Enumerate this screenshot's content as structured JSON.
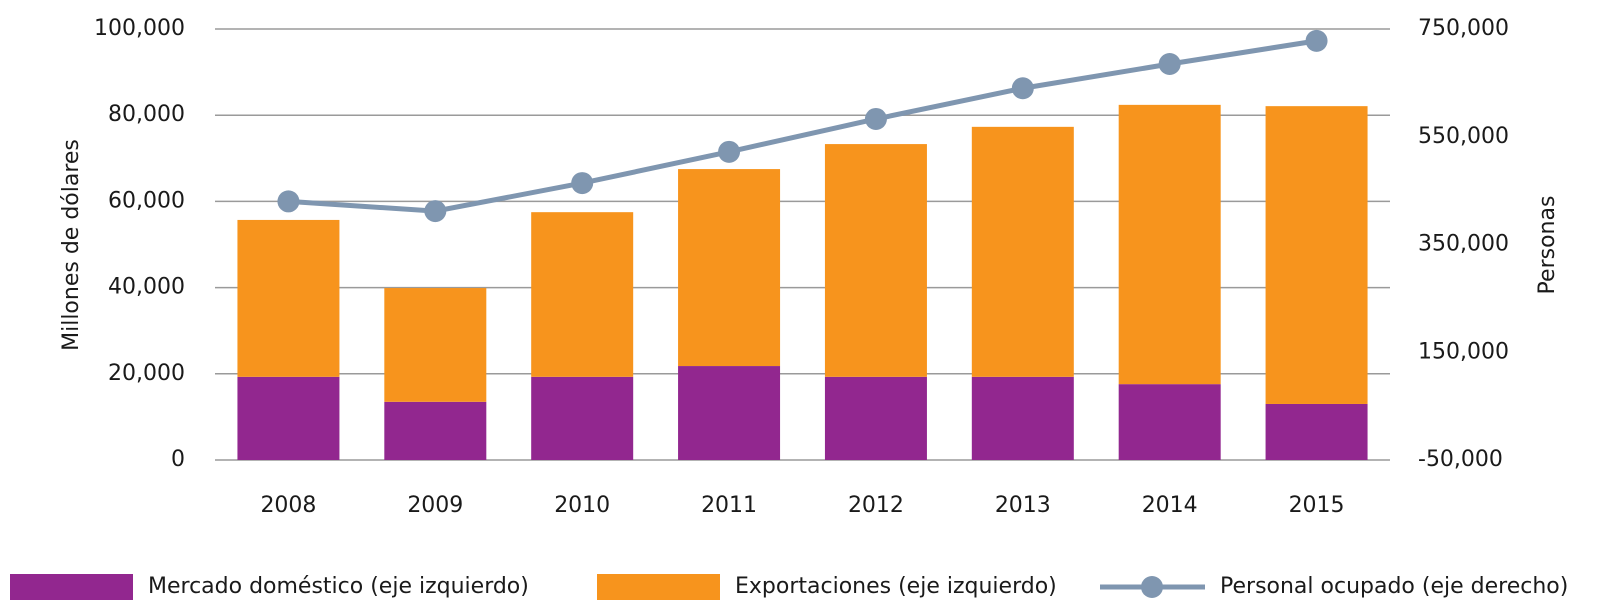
{
  "chart_data": {
    "type": "bar",
    "stacked": true,
    "categories": [
      "2008",
      "2009",
      "2010",
      "2011",
      "2012",
      "2013",
      "2014",
      "2015"
    ],
    "ylabel": "Millones de dólares",
    "y2label": "Personas",
    "ylim": [
      0,
      100000
    ],
    "yticks": [
      0,
      {
        "value": 20000,
        "label": "20,000"
      },
      {
        "value": 40000,
        "label": "40,000"
      },
      {
        "value": 60000,
        "label": "60,000"
      },
      {
        "value": 80000,
        "label": "80,000"
      },
      {
        "value": 100000,
        "label": "100,000"
      }
    ],
    "y2lim": [
      -50000,
      750000
    ],
    "y2ticks": [
      {
        "value": -50000,
        "label": "-50,000"
      },
      {
        "value": 150000,
        "label": "150,000"
      },
      {
        "value": 350000,
        "label": "350,000"
      },
      {
        "value": 550000,
        "label": "550,000"
      },
      {
        "value": 750000,
        "label": "750,000"
      }
    ],
    "grid": true,
    "legend": "bottom",
    "series": [
      {
        "name": "Mercado doméstico (eje izquierdo)",
        "color": "#92278f",
        "type": "bar",
        "values": [
          19300,
          13500,
          19300,
          21800,
          19300,
          19300,
          17600,
          13000
        ]
      },
      {
        "name": "Exportaciones (eje izquierdo)",
        "color": "#f7941d",
        "type": "bar",
        "values": [
          36400,
          26400,
          38200,
          45700,
          54000,
          58000,
          64800,
          69100
        ]
      },
      {
        "name": "Personal ocupado (eje derecho)",
        "color": "#7f96b0",
        "type": "line",
        "axis": "y2",
        "values": [
          430000,
          412000,
          464000,
          522000,
          583000,
          640000,
          685000,
          728000
        ]
      }
    ]
  }
}
